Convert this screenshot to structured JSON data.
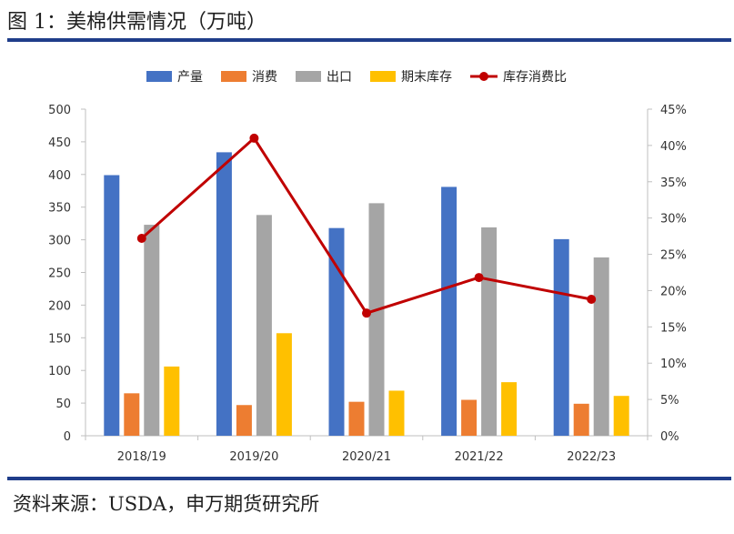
{
  "figure": {
    "title": "图 1：美棉供需情况（万吨）",
    "source": "资料来源：USDA，申万期货研究所"
  },
  "chart_data": {
    "type": "bar",
    "categories": [
      "2018/19",
      "2019/20",
      "2020/21",
      "2021/22",
      "2022/23"
    ],
    "series": [
      {
        "name": "产量",
        "kind": "bar",
        "axis": "left",
        "color": "#4472c4",
        "values": [
          399,
          434,
          318,
          381,
          301
        ]
      },
      {
        "name": "消费",
        "kind": "bar",
        "axis": "left",
        "color": "#ed7d31",
        "values": [
          65,
          47,
          52,
          55,
          49
        ]
      },
      {
        "name": "出口",
        "kind": "bar",
        "axis": "left",
        "color": "#a5a5a5",
        "values": [
          323,
          338,
          356,
          319,
          273
        ]
      },
      {
        "name": "期末库存",
        "kind": "bar",
        "axis": "left",
        "color": "#ffc000",
        "values": [
          106,
          157,
          69,
          82,
          61
        ]
      },
      {
        "name": "库存消费比",
        "kind": "line",
        "axis": "right",
        "color": "#c00000",
        "values": [
          27.2,
          41.0,
          16.9,
          21.8,
          18.8
        ]
      }
    ],
    "y_left": {
      "min": 0,
      "max": 500,
      "step": 50,
      "ticks": [
        "0",
        "50",
        "100",
        "150",
        "200",
        "250",
        "300",
        "350",
        "400",
        "450",
        "500"
      ]
    },
    "y_right": {
      "min": 0,
      "max": 45,
      "step": 5,
      "ticks": [
        "0%",
        "5%",
        "10%",
        "15%",
        "20%",
        "25%",
        "30%",
        "35%",
        "40%",
        "45%"
      ]
    },
    "grid": false,
    "legend": "top-center"
  }
}
